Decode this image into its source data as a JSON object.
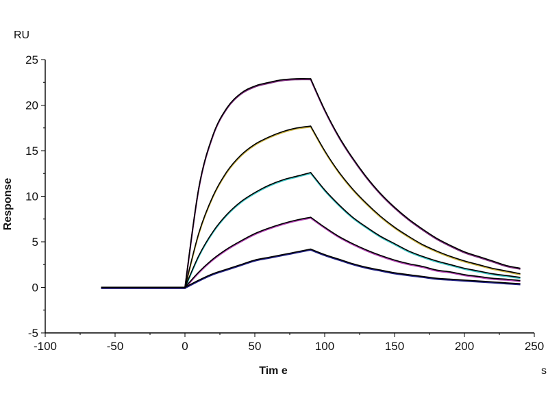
{
  "chart_data": {
    "type": "line",
    "title": "",
    "xlabel": "Tim e",
    "xunit": "s",
    "ylabel": "Response",
    "yunit": "RU",
    "xlim": [
      -100,
      250
    ],
    "ylim": [
      -5,
      25
    ],
    "xticks": [
      -100,
      -50,
      0,
      50,
      100,
      150,
      200,
      250
    ],
    "yticks": [
      -5,
      0,
      5,
      10,
      15,
      20,
      25
    ],
    "grid": false,
    "legend": "none",
    "x": [
      -60,
      0,
      10,
      20,
      30,
      40,
      50,
      60,
      70,
      80,
      90,
      100,
      110,
      120,
      130,
      140,
      150,
      160,
      170,
      180,
      190,
      200,
      210,
      220,
      230,
      240
    ],
    "series": [
      {
        "color": "#7a2a7a",
        "values": [
          0,
          0,
          11.0,
          16.7,
          19.7,
          21.3,
          22.1,
          22.5,
          22.8,
          22.9,
          22.9,
          19.5,
          16.6,
          14.2,
          12.1,
          10.3,
          8.8,
          7.5,
          6.4,
          5.4,
          4.6,
          3.9,
          3.4,
          2.9,
          2.4,
          2.1
        ]
      },
      {
        "color": "#c8b040",
        "values": [
          0,
          0,
          6.0,
          10.0,
          12.7,
          14.5,
          15.7,
          16.5,
          17.1,
          17.5,
          17.7,
          15.0,
          12.7,
          10.8,
          9.2,
          7.8,
          6.6,
          5.6,
          4.7,
          4.0,
          3.4,
          2.9,
          2.5,
          2.1,
          1.8,
          1.5
        ]
      },
      {
        "color": "#3cc4c4",
        "values": [
          0,
          0,
          3.5,
          6.1,
          8.0,
          9.4,
          10.4,
          11.2,
          11.8,
          12.2,
          12.6,
          10.7,
          9.1,
          7.7,
          6.6,
          5.6,
          4.8,
          4.0,
          3.4,
          2.9,
          2.5,
          2.1,
          1.8,
          1.5,
          1.3,
          1.1
        ]
      },
      {
        "color": "#b040b0",
        "values": [
          0,
          0,
          1.7,
          3.1,
          4.2,
          5.1,
          5.9,
          6.5,
          7.0,
          7.4,
          7.7,
          6.6,
          5.6,
          4.8,
          4.1,
          3.5,
          3.0,
          2.6,
          2.3,
          1.9,
          1.7,
          1.4,
          1.2,
          1.0,
          0.9,
          0.75
        ]
      },
      {
        "color": "#202080",
        "values": [
          0,
          0,
          0.8,
          1.5,
          2.0,
          2.5,
          3.0,
          3.3,
          3.6,
          3.9,
          4.2,
          3.6,
          3.1,
          2.6,
          2.2,
          1.9,
          1.6,
          1.4,
          1.2,
          1.0,
          0.9,
          0.8,
          0.7,
          0.6,
          0.5,
          0.4
        ]
      }
    ],
    "fit_color": "#000000"
  }
}
